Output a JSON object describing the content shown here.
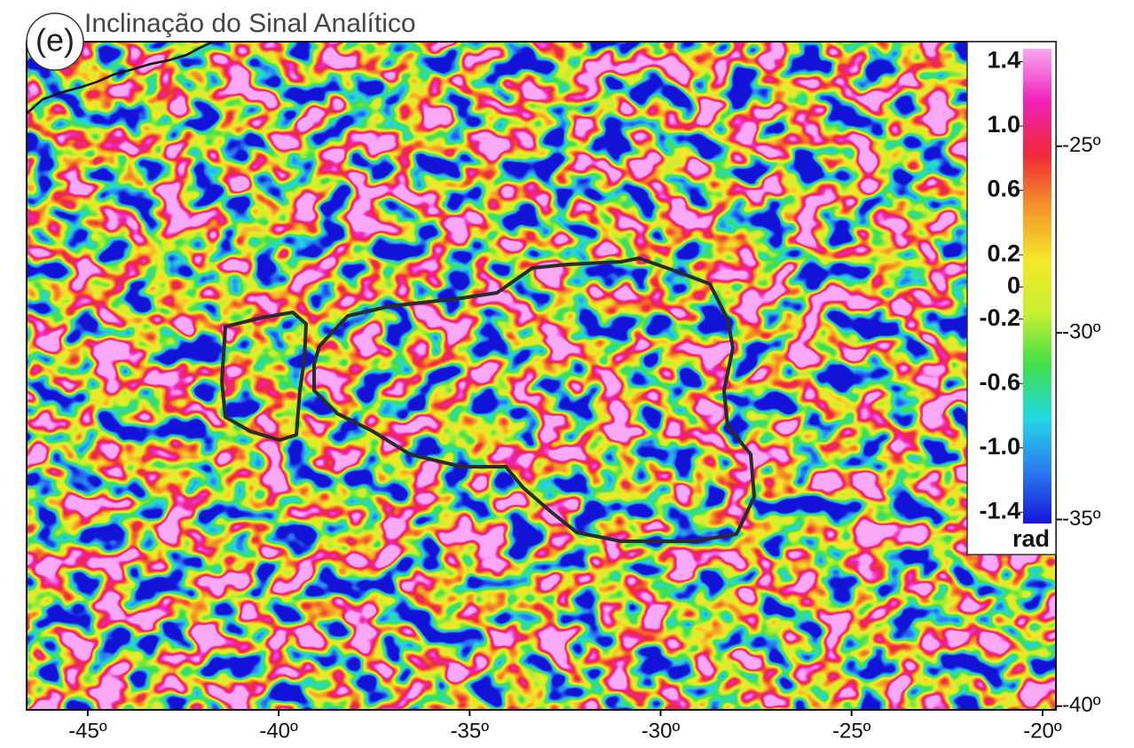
{
  "title": "Inclinação do Sinal Analítico",
  "panel_label": "(e)",
  "map": {
    "xlim": [
      -46.6,
      -19.65
    ],
    "ylim": [
      -40.1,
      -22.2
    ],
    "xticks": [
      {
        "value": -45,
        "label": "-45º"
      },
      {
        "value": -40,
        "label": "-40º"
      },
      {
        "value": -35,
        "label": "-35º"
      },
      {
        "value": -30,
        "label": "-30º"
      },
      {
        "value": -25,
        "label": "-25º"
      },
      {
        "value": -20,
        "label": "-20º"
      }
    ],
    "yticks": [
      {
        "value": -25,
        "label": "-25º"
      },
      {
        "value": -30,
        "label": "-30º"
      },
      {
        "value": -35,
        "label": "-35º"
      },
      {
        "value": -40,
        "label": "-40º"
      }
    ]
  },
  "colorbar": {
    "unit": "rad",
    "range": [
      -1.47,
      1.48
    ],
    "ticks": [
      {
        "value": 1.4,
        "label": "1.4"
      },
      {
        "value": 1.0,
        "label": "1.0"
      },
      {
        "value": 0.6,
        "label": "0.6"
      },
      {
        "value": 0.2,
        "label": "0.2"
      },
      0,
      {
        "value": -0.2,
        "label": "-0.2"
      },
      {
        "value": -0.6,
        "label": "-0.6"
      },
      {
        "value": -1.0,
        "label": "-1.0"
      },
      {
        "value": -1.4,
        "label": "-1.4"
      }
    ],
    "colormap": [
      "#1414d8",
      "#2a7cf0",
      "#22d8e4",
      "#3ee04a",
      "#c8f030",
      "#f4e828",
      "#f49428",
      "#f02838",
      "#f020b8",
      "#f8a8f4"
    ]
  }
}
